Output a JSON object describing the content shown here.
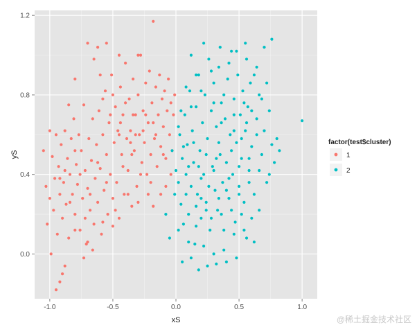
{
  "chart_data": {
    "type": "scatter",
    "title": "",
    "xlabel": "xS",
    "ylabel": "yS",
    "xlim": [
      -1.12,
      1.12
    ],
    "ylim": [
      -0.225,
      1.225
    ],
    "x_ticks": [
      -1.0,
      -0.5,
      0.0,
      0.5,
      1.0
    ],
    "x_tick_labels": [
      "-1.0",
      "-0.5",
      "0.0",
      "0.5",
      "1.0"
    ],
    "y_ticks": [
      0.0,
      0.4,
      0.8,
      1.2
    ],
    "y_tick_labels": [
      "0.0",
      "0.4",
      "0.8",
      "1.2"
    ],
    "grid": true,
    "legend": {
      "title": "factor(test$cluster)",
      "placement": "right"
    },
    "series": [
      {
        "name": "1",
        "color": "#F8766D",
        "points": [
          [
            -1.05,
            0.52
          ],
          [
            -1.03,
            0.34
          ],
          [
            -1.02,
            0.15
          ],
          [
            -1.0,
            0.28
          ],
          [
            -0.98,
            0.49
          ],
          [
            -0.97,
            0.22
          ],
          [
            -0.96,
            0.38
          ],
          [
            -0.95,
            0.6
          ],
          [
            -0.94,
            0.1
          ],
          [
            -0.93,
            0.44
          ],
          [
            -0.92,
            0.3
          ],
          [
            -0.91,
            0.55
          ],
          [
            -0.9,
            0.18
          ],
          [
            -0.89,
            0.36
          ],
          [
            -0.88,
            0.62
          ],
          [
            -0.87,
            0.25
          ],
          [
            -0.86,
            0.48
          ],
          [
            -0.85,
            0.08
          ],
          [
            -0.84,
            0.4
          ],
          [
            -0.83,
            0.58
          ],
          [
            -0.82,
            0.3
          ],
          [
            -0.81,
            0.68
          ],
          [
            -0.8,
            0.2
          ],
          [
            -0.79,
            0.45
          ],
          [
            -0.78,
            0.35
          ],
          [
            -0.77,
            0.6
          ],
          [
            -0.76,
            0.12
          ],
          [
            -0.75,
            0.52
          ],
          [
            -0.74,
            0.28
          ],
          [
            -0.73,
            0.75
          ],
          [
            -0.72,
            0.42
          ],
          [
            -0.71,
            0.05
          ],
          [
            -0.7,
            0.33
          ],
          [
            -0.69,
            0.58
          ],
          [
            -0.68,
            0.22
          ],
          [
            -0.67,
            0.47
          ],
          [
            -0.66,
            0.68
          ],
          [
            -0.65,
            0.15
          ],
          [
            -0.64,
            0.38
          ],
          [
            -0.63,
            0.55
          ],
          [
            -0.62,
            0.26
          ],
          [
            -0.61,
            0.72
          ],
          [
            -0.6,
            0.43
          ],
          [
            -0.59,
            0.1
          ],
          [
            -0.58,
            0.6
          ],
          [
            -0.57,
            0.32
          ],
          [
            -0.56,
            0.82
          ],
          [
            -0.55,
            0.5
          ],
          [
            -0.54,
            0.2
          ],
          [
            -0.53,
            0.66
          ],
          [
            -0.52,
            0.4
          ],
          [
            -0.51,
            0.9
          ],
          [
            -0.5,
            0.28
          ],
          [
            -0.49,
            0.56
          ],
          [
            -0.48,
            0.74
          ],
          [
            -0.47,
            0.36
          ],
          [
            -0.46,
            0.62
          ],
          [
            -0.45,
            0.18
          ],
          [
            -0.44,
            0.84
          ],
          [
            -0.43,
            0.5
          ],
          [
            -0.42,
            0.7
          ],
          [
            -0.41,
            0.3
          ],
          [
            -0.4,
            0.96
          ],
          [
            -0.39,
            0.58
          ],
          [
            -0.38,
            0.42
          ],
          [
            -0.37,
            0.78
          ],
          [
            -0.36,
            0.62
          ],
          [
            -0.35,
            0.24
          ],
          [
            -0.34,
            0.88
          ],
          [
            -0.33,
            0.52
          ],
          [
            -0.32,
            0.7
          ],
          [
            -0.31,
            0.34
          ],
          [
            -0.3,
            0.8
          ],
          [
            -0.29,
            0.6
          ],
          [
            -0.28,
            1.0
          ],
          [
            -0.27,
            0.46
          ],
          [
            -0.26,
            0.72
          ],
          [
            -0.25,
            0.56
          ],
          [
            -0.24,
            0.86
          ],
          [
            -0.23,
            0.4
          ],
          [
            -0.22,
            0.66
          ],
          [
            -0.21,
            0.92
          ],
          [
            -0.2,
            0.5
          ],
          [
            -0.19,
            0.76
          ],
          [
            -0.18,
            1.17
          ],
          [
            -0.17,
            0.58
          ],
          [
            -0.16,
            0.84
          ],
          [
            -0.15,
            0.44
          ],
          [
            -0.14,
            0.7
          ],
          [
            -0.13,
            0.9
          ],
          [
            -0.12,
            0.54
          ],
          [
            -0.11,
            0.78
          ],
          [
            -0.1,
            0.64
          ],
          [
            -0.09,
            0.82
          ],
          [
            -0.08,
            0.48
          ],
          [
            -0.07,
            0.72
          ],
          [
            -0.06,
            0.88
          ],
          [
            -0.05,
            0.6
          ],
          [
            -0.04,
            0.76
          ],
          [
            -0.03,
            0.52
          ],
          [
            -0.02,
            0.7
          ],
          [
            -0.01,
            0.8
          ],
          [
            -0.95,
            -0.18
          ],
          [
            -0.92,
            -0.14
          ],
          [
            -0.9,
            -0.1
          ],
          [
            -0.88,
            -0.06
          ],
          [
            -0.99,
            0.0
          ],
          [
            -0.73,
            -0.02
          ],
          [
            -0.66,
            0.02
          ],
          [
            -0.7,
            0.06
          ],
          [
            -0.62,
            1.04
          ],
          [
            -0.55,
            1.06
          ],
          [
            -0.7,
            1.06
          ],
          [
            -0.45,
            1.0
          ],
          [
            -0.3,
            1.0
          ],
          [
            -0.65,
            0.98
          ],
          [
            -0.8,
            0.88
          ],
          [
            -0.6,
            0.9
          ],
          [
            -0.85,
            0.75
          ],
          [
            -0.5,
            0.8
          ],
          [
            -0.58,
            0.78
          ],
          [
            -0.45,
            0.6
          ],
          [
            -0.62,
            0.46
          ],
          [
            -0.8,
            0.52
          ],
          [
            -0.68,
            0.3
          ],
          [
            -0.55,
            0.36
          ],
          [
            -0.76,
            0.4
          ],
          [
            -0.88,
            0.42
          ],
          [
            -1.0,
            0.62
          ],
          [
            -0.48,
            0.22
          ],
          [
            -0.38,
            0.3
          ],
          [
            -0.3,
            0.26
          ],
          [
            -0.22,
            0.3
          ],
          [
            -0.18,
            0.24
          ],
          [
            -0.12,
            0.3
          ],
          [
            -0.5,
            0.14
          ],
          [
            -0.58,
            0.16
          ],
          [
            -0.8,
            0.12
          ],
          [
            -0.72,
            0.18
          ],
          [
            -0.84,
            0.26
          ],
          [
            -0.92,
            0.38
          ],
          [
            -0.42,
            0.44
          ],
          [
            -0.35,
            0.5
          ],
          [
            -0.28,
            0.4
          ],
          [
            -0.2,
            0.36
          ],
          [
            -0.08,
            0.34
          ],
          [
            -0.04,
            0.4
          ],
          [
            -0.1,
            0.5
          ],
          [
            -0.16,
            0.6
          ],
          [
            -0.26,
            0.62
          ],
          [
            -0.34,
            0.7
          ],
          [
            -0.4,
            0.76
          ],
          [
            -0.52,
            0.7
          ],
          [
            -0.44,
            0.66
          ],
          [
            -0.36,
            0.56
          ],
          [
            -0.32,
            0.6
          ],
          [
            -0.24,
            0.7
          ],
          [
            -0.18,
            0.66
          ]
        ]
      },
      {
        "name": "2",
        "color": "#00BFC4",
        "points": [
          [
            -0.05,
            0.08
          ],
          [
            -0.03,
            0.52
          ],
          [
            -0.01,
            0.3
          ],
          [
            0.0,
            0.42
          ],
          [
            0.02,
            0.36
          ],
          [
            0.03,
            0.6
          ],
          [
            0.04,
            0.25
          ],
          [
            0.05,
            0.48
          ],
          [
            0.06,
            0.15
          ],
          [
            0.07,
            0.7
          ],
          [
            0.08,
            0.4
          ],
          [
            0.09,
            0.55
          ],
          [
            0.1,
            0.2
          ],
          [
            0.11,
            0.82
          ],
          [
            0.12,
            0.34
          ],
          [
            0.13,
            0.62
          ],
          [
            0.14,
            0.46
          ],
          [
            0.15,
            0.05
          ],
          [
            0.16,
            0.74
          ],
          [
            0.17,
            0.3
          ],
          [
            0.18,
            0.9
          ],
          [
            0.19,
            0.52
          ],
          [
            0.2,
            0.18
          ],
          [
            0.21,
            0.66
          ],
          [
            0.22,
            0.4
          ],
          [
            0.23,
            0.8
          ],
          [
            0.24,
            0.26
          ],
          [
            0.25,
            0.58
          ],
          [
            0.26,
            0.98
          ],
          [
            0.27,
            0.12
          ],
          [
            0.28,
            0.72
          ],
          [
            0.29,
            0.44
          ],
          [
            0.3,
            0.86
          ],
          [
            0.31,
            0.32
          ],
          [
            0.32,
            0.64
          ],
          [
            0.33,
            0.22
          ],
          [
            0.34,
            0.94
          ],
          [
            0.35,
            0.5
          ],
          [
            0.36,
            0.76
          ],
          [
            0.37,
            0.36
          ],
          [
            0.38,
            0.02
          ],
          [
            0.39,
            0.68
          ],
          [
            0.4,
            0.46
          ],
          [
            0.41,
            0.88
          ],
          [
            0.42,
            0.28
          ],
          [
            0.43,
            0.6
          ],
          [
            0.44,
            1.02
          ],
          [
            0.45,
            0.4
          ],
          [
            0.46,
            0.78
          ],
          [
            0.47,
            0.16
          ],
          [
            0.48,
            0.56
          ],
          [
            0.49,
            0.9
          ],
          [
            0.5,
            0.34
          ],
          [
            0.51,
            0.7
          ],
          [
            0.52,
            0.48
          ],
          [
            0.53,
            0.82
          ],
          [
            0.54,
            0.26
          ],
          [
            0.55,
            0.62
          ],
          [
            0.56,
            0.08
          ],
          [
            0.57,
            0.74
          ],
          [
            0.58,
            0.42
          ],
          [
            0.59,
            0.86
          ],
          [
            0.6,
            0.54
          ],
          [
            0.62,
            0.3
          ],
          [
            0.64,
            0.68
          ],
          [
            0.66,
            0.8
          ],
          [
            0.68,
            0.5
          ],
          [
            0.7,
            0.62
          ],
          [
            0.72,
            0.36
          ],
          [
            0.74,
            0.72
          ],
          [
            0.76,
            0.55
          ],
          [
            0.78,
            0.46
          ],
          [
            0.8,
            0.58
          ],
          [
            0.82,
            0.52
          ],
          [
            0.76,
            1.08
          ],
          [
            0.7,
            1.04
          ],
          [
            0.62,
            0.9
          ],
          [
            0.55,
            1.06
          ],
          [
            0.48,
            1.02
          ],
          [
            0.35,
            1.04
          ],
          [
            0.22,
            1.06
          ],
          [
            0.12,
            1.0
          ],
          [
            1.0,
            0.67
          ],
          [
            0.05,
            -0.04
          ],
          [
            0.12,
            -0.02
          ],
          [
            0.18,
            -0.08
          ],
          [
            0.25,
            -0.06
          ],
          [
            0.32,
            -0.05
          ],
          [
            0.4,
            -0.04
          ],
          [
            0.48,
            -0.02
          ],
          [
            0.3,
            0.0
          ],
          [
            0.22,
            0.04
          ],
          [
            0.1,
            0.06
          ],
          [
            0.02,
            0.12
          ],
          [
            -0.08,
            0.2
          ],
          [
            0.16,
            0.14
          ],
          [
            0.28,
            0.18
          ],
          [
            0.36,
            0.2
          ],
          [
            0.44,
            0.22
          ],
          [
            0.52,
            0.2
          ],
          [
            0.6,
            0.18
          ],
          [
            0.66,
            0.22
          ],
          [
            0.08,
            0.3
          ],
          [
            0.2,
            0.38
          ],
          [
            0.3,
            0.42
          ],
          [
            0.4,
            0.32
          ],
          [
            0.5,
            0.3
          ],
          [
            0.58,
            0.36
          ],
          [
            0.14,
            0.56
          ],
          [
            0.24,
            0.5
          ],
          [
            0.34,
            0.56
          ],
          [
            0.46,
            0.62
          ],
          [
            0.56,
            0.66
          ],
          [
            0.64,
            0.6
          ],
          [
            0.12,
            0.74
          ],
          [
            0.2,
            0.82
          ],
          [
            0.3,
            0.76
          ],
          [
            0.38,
            0.8
          ],
          [
            0.46,
            0.7
          ],
          [
            0.54,
            0.76
          ],
          [
            0.6,
            0.72
          ],
          [
            0.68,
            0.78
          ],
          [
            0.72,
            0.86
          ],
          [
            0.64,
            0.94
          ],
          [
            0.56,
            0.98
          ],
          [
            0.42,
            0.96
          ],
          [
            0.28,
            0.92
          ],
          [
            0.16,
            0.9
          ],
          [
            0.08,
            0.84
          ],
          [
            0.04,
            0.72
          ],
          [
            0.02,
            0.64
          ],
          [
            0.06,
            0.54
          ],
          [
            0.1,
            0.44
          ],
          [
            0.18,
            0.44
          ],
          [
            0.26,
            0.34
          ],
          [
            0.34,
            0.28
          ],
          [
            0.42,
            0.38
          ],
          [
            0.5,
            0.44
          ],
          [
            0.58,
            0.48
          ],
          [
            0.66,
            0.42
          ],
          [
            0.74,
            0.4
          ],
          [
            0.16,
            0.24
          ],
          [
            0.24,
            0.22
          ],
          [
            0.38,
            0.12
          ],
          [
            0.46,
            0.1
          ],
          [
            0.54,
            0.12
          ],
          [
            0.62,
            0.06
          ],
          [
            0.2,
            0.28
          ],
          [
            0.32,
            0.48
          ],
          [
            0.44,
            0.52
          ],
          [
            0.52,
            0.58
          ],
          [
            0.36,
            0.66
          ]
        ]
      }
    ]
  },
  "watermark": "@稀土掘金技术社区"
}
